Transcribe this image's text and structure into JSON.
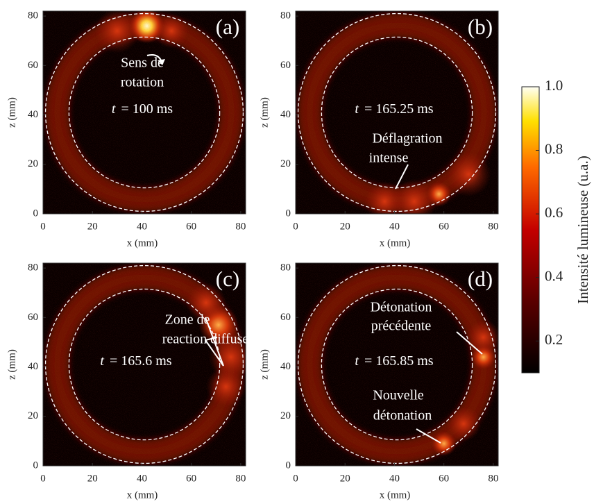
{
  "panels": [
    {
      "label": "(a)",
      "time_symbol": "t",
      "time": "= 100 ms",
      "annotations": [
        [
          "Sens de",
          "rotation"
        ]
      ],
      "xlabel": "x (mm)",
      "ylabel": "z (mm)",
      "xlim": [
        0,
        82
      ],
      "ylim": [
        0,
        82
      ],
      "xticks": [
        0,
        20,
        40,
        60,
        80
      ],
      "yticks": [
        0,
        20,
        40,
        60,
        80
      ]
    },
    {
      "label": "(b)",
      "time_symbol": "t",
      "time": "= 165.25 ms",
      "annotations": [
        [
          "Déflagration",
          "intense"
        ]
      ],
      "xlabel": "x (mm)",
      "ylabel": "z (mm)",
      "xlim": [
        0,
        82
      ],
      "ylim": [
        0,
        82
      ],
      "xticks": [
        0,
        20,
        40,
        60,
        80
      ],
      "yticks": [
        0,
        20,
        40,
        60,
        80
      ]
    },
    {
      "label": "(c)",
      "time_symbol": "t",
      "time": "= 165.6 ms",
      "annotations": [
        [
          "Zone de",
          "reaction diffuse"
        ]
      ],
      "xlabel": "x (mm)",
      "ylabel": "z (mm)",
      "xlim": [
        0,
        82
      ],
      "ylim": [
        0,
        82
      ],
      "xticks": [
        0,
        20,
        40,
        60,
        80
      ],
      "yticks": [
        0,
        20,
        40,
        60,
        80
      ]
    },
    {
      "label": "(d)",
      "time_symbol": "t",
      "time": "= 165.85 ms",
      "annotations": [
        [
          "Détonation",
          "précédente"
        ],
        [
          "Nouvelle",
          "détonation"
        ]
      ],
      "xlabel": "x (mm)",
      "ylabel": "z (mm)",
      "xlim": [
        0,
        82
      ],
      "ylim": [
        0,
        82
      ],
      "xticks": [
        0,
        20,
        40,
        60,
        80
      ],
      "yticks": [
        0,
        20,
        40,
        60,
        80
      ]
    }
  ],
  "colorbar": {
    "label": "Intensité lumineuse (u.a.)",
    "lim": [
      0.1,
      1.0
    ],
    "ticks": [
      0.2,
      0.4,
      0.6,
      0.8,
      {
        "value": 1.0,
        "label": "1.0"
      }
    ]
  }
}
